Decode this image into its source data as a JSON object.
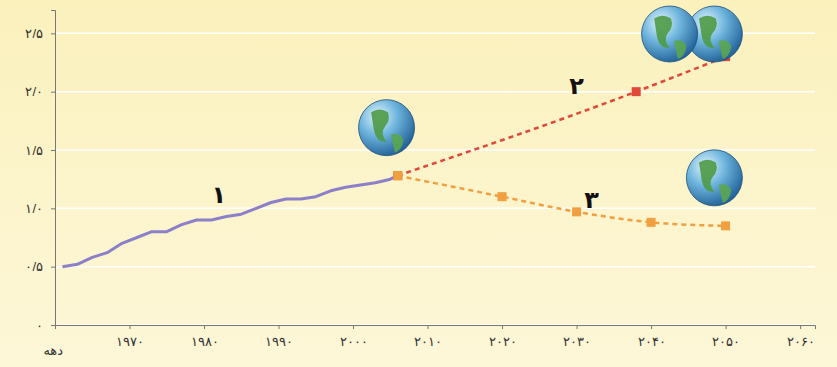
{
  "chart_data": {
    "type": "line",
    "x_label": "دهه",
    "xlim": [
      1960,
      2062
    ],
    "xticks": [
      {
        "value": 1970,
        "label": "۱۹۷۰"
      },
      {
        "value": 1980,
        "label": "۱۹۸۰"
      },
      {
        "value": 1990,
        "label": "۱۹۹۰"
      },
      {
        "value": 2000,
        "label": "۲۰۰۰"
      },
      {
        "value": 2010,
        "label": "۲۰۱۰"
      },
      {
        "value": 2020,
        "label": "۲۰۲۰"
      },
      {
        "value": 2030,
        "label": "۲۰۳۰"
      },
      {
        "value": 2040,
        "label": "۲۰۴۰"
      },
      {
        "value": 2050,
        "label": "۲۰۵۰"
      },
      {
        "value": 2060,
        "label": "۲۰۶۰"
      }
    ],
    "ylim": [
      0,
      2.7
    ],
    "yticks": [
      {
        "value": 0,
        "label": "۰"
      },
      {
        "value": 0.5,
        "label": "۰/۵"
      },
      {
        "value": 1,
        "label": "۱/۰"
      },
      {
        "value": 1.5,
        "label": "۱/۵"
      },
      {
        "value": 2,
        "label": "۲/۰"
      },
      {
        "value": 2.5,
        "label": "۲/۵"
      }
    ],
    "grid": true,
    "series": [
      {
        "color": "#8b80c9",
        "line_style": "solid",
        "marker": "none",
        "x": [
          1961,
          1963,
          1965,
          1967,
          1969,
          1971,
          1973,
          1975,
          1977,
          1979,
          1981,
          1983,
          1985,
          1987,
          1989,
          1991,
          1993,
          1995,
          1997,
          1999,
          2001,
          2003,
          2005,
          2006
        ],
        "values": [
          0.5,
          0.52,
          0.58,
          0.62,
          0.7,
          0.75,
          0.8,
          0.8,
          0.86,
          0.9,
          0.9,
          0.93,
          0.95,
          1.0,
          1.05,
          1.08,
          1.08,
          1.1,
          1.15,
          1.18,
          1.2,
          1.22,
          1.25,
          1.28
        ]
      },
      {
        "color": "#e0483a",
        "line_style": "dashed",
        "marker": "square",
        "x": [
          2006,
          2038,
          2050
        ],
        "values": [
          1.28,
          2.0,
          2.3
        ]
      },
      {
        "color": "#f0a040",
        "line_style": "dashed",
        "marker": "square",
        "x": [
          2006,
          2020,
          2030,
          2040,
          2050
        ],
        "values": [
          1.28,
          1.1,
          0.97,
          0.88,
          0.85
        ]
      }
    ],
    "annotations": [
      {
        "text": "۱",
        "x": 1982,
        "y": 1.05
      },
      {
        "text": "۲",
        "x": 2030,
        "y": 1.98
      },
      {
        "text": "۳",
        "x": 2032,
        "y": 1.0
      }
    ]
  }
}
